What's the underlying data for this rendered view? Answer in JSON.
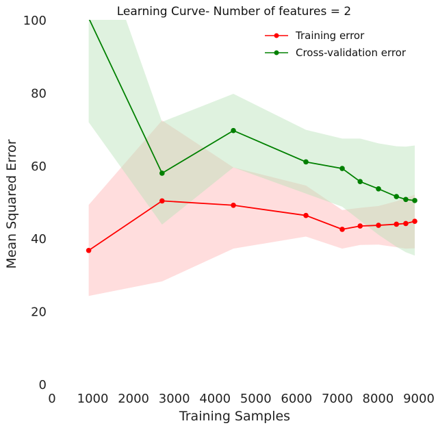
{
  "chart_data": {
    "type": "line",
    "title": "Learning Curve- Number of features = 2",
    "xlabel": "Training Samples",
    "ylabel": "Mean Squared Error",
    "xlim": [
      0,
      9000
    ],
    "ylim": [
      0,
      100
    ],
    "xticks": [
      0,
      1000,
      2000,
      3000,
      4000,
      5000,
      6000,
      7000,
      8000,
      9000
    ],
    "yticks": [
      0,
      20,
      40,
      60,
      80,
      100
    ],
    "grid": false,
    "legend_position": "top-right",
    "series": [
      {
        "name": "Training error",
        "color": "#ff0000",
        "band_color": "#ffb3b3",
        "x": [
          900,
          2700,
          4450,
          6230,
          7120,
          7560,
          8010,
          8450,
          8680,
          8900
        ],
        "y": [
          36.7,
          50.3,
          49.1,
          46.3,
          42.5,
          43.4,
          43.6,
          43.9,
          44.1,
          44.7
        ],
        "upper": [
          49.2,
          72.4,
          59.5,
          54.5,
          47.8,
          48.4,
          48.9,
          50.2,
          51.1,
          52.0
        ],
        "lower": [
          24.2,
          28.2,
          37.2,
          40.5,
          37.2,
          38.2,
          38.3,
          37.6,
          37.2,
          37.3
        ]
      },
      {
        "name": "Cross-validation error",
        "color": "#008000",
        "band_color": "#b9e3b9",
        "x": [
          900,
          2700,
          4450,
          6230,
          7120,
          7560,
          8010,
          8450,
          8680,
          8900
        ],
        "y": [
          100.5,
          57.9,
          69.6,
          61.0,
          59.2,
          55.6,
          53.6,
          51.5,
          50.7,
          50.4
        ],
        "upper": [
          129.0,
          72.0,
          79.7,
          69.8,
          67.4,
          67.4,
          66.1,
          65.3,
          65.2,
          65.5
        ],
        "lower": [
          71.9,
          43.8,
          59.5,
          52.3,
          48.7,
          44.9,
          41.0,
          37.7,
          36.2,
          35.3
        ]
      }
    ]
  }
}
